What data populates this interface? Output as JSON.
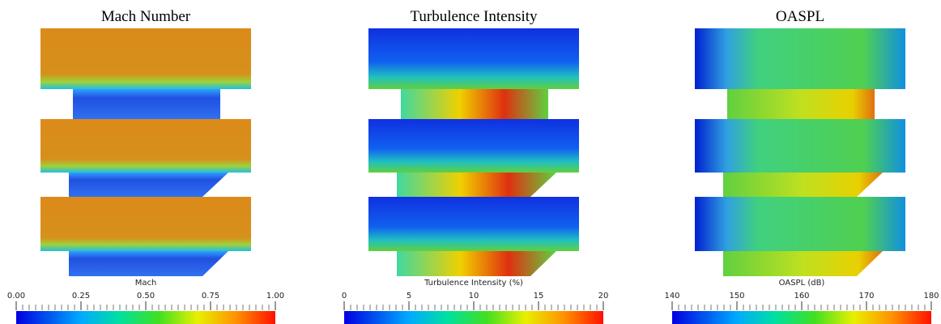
{
  "panels": [
    {
      "title": "Mach Number",
      "colorbar": {
        "label": "Mach",
        "lim": [
          0,
          1
        ],
        "ticks": [
          {
            "value": 0,
            "label": "0.00"
          },
          {
            "value": 0.25,
            "label": "0.25"
          },
          {
            "value": 0.5,
            "label": "0.50"
          },
          {
            "value": 0.75,
            "label": "0.75"
          },
          {
            "value": 1,
            "label": "1.00"
          }
        ]
      }
    },
    {
      "title": "Turbulence Intensity",
      "colorbar": {
        "label": "Turbulence Intensity (%)",
        "lim": [
          0,
          20
        ],
        "ticks": [
          0,
          5,
          10,
          15,
          20
        ]
      }
    },
    {
      "title": "OASPL",
      "colorbar": {
        "label": "OASPL (dB)",
        "lim": [
          140,
          180
        ],
        "ticks": [
          140,
          150,
          160,
          170,
          180
        ]
      }
    }
  ]
}
